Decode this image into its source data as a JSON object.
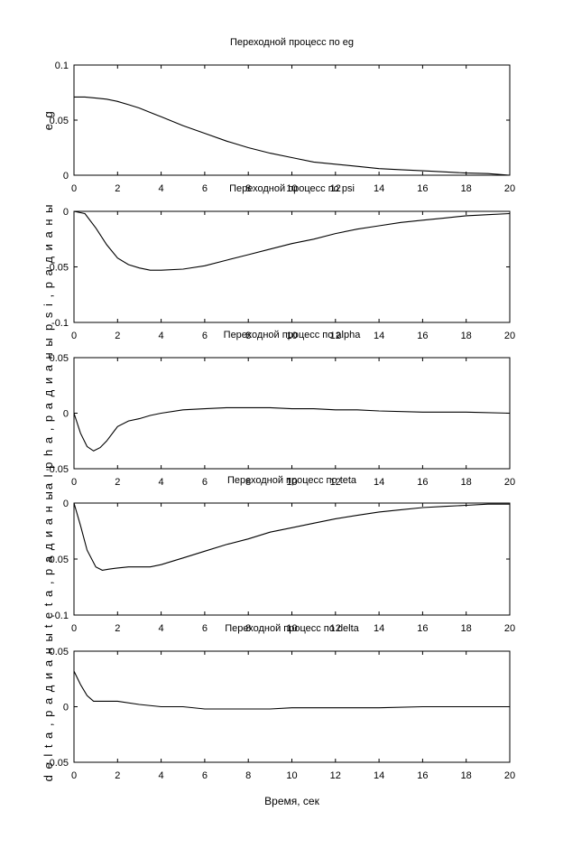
{
  "chart_data": [
    {
      "type": "line",
      "title": "Переходной процесс по eg",
      "ylabel": "e g",
      "xlabel": "",
      "xlim": [
        0,
        20
      ],
      "ylim": [
        0,
        0.1
      ],
      "xticks": [
        "0",
        "2",
        "4",
        "6",
        "8",
        "10",
        "12",
        "14",
        "16",
        "18",
        "20"
      ],
      "yticks": [
        "0",
        "0.05",
        "0.1"
      ],
      "series": [
        {
          "x": [
            0,
            0.5,
            1,
            1.5,
            2,
            2.5,
            3,
            3.5,
            4,
            5,
            6,
            7,
            8,
            9,
            10,
            11,
            12,
            13,
            14,
            15,
            16,
            17,
            18,
            19,
            20
          ],
          "values": [
            0.071,
            0.071,
            0.07,
            0.069,
            0.067,
            0.064,
            0.061,
            0.057,
            0.053,
            0.045,
            0.038,
            0.031,
            0.025,
            0.02,
            0.016,
            0.012,
            0.01,
            0.008,
            0.006,
            0.005,
            0.004,
            0.003,
            0.002,
            0.0015,
            0
          ]
        }
      ]
    },
    {
      "type": "line",
      "title": "Переходной процесс по psi",
      "ylabel": "p s i , р а д и а н ы",
      "xlabel": "",
      "xlim": [
        0,
        20
      ],
      "ylim": [
        -0.1,
        0
      ],
      "xticks": [
        "0",
        "2",
        "4",
        "6",
        "8",
        "10",
        "12",
        "14",
        "16",
        "18",
        "20"
      ],
      "yticks": [
        "-0.1",
        "-0.05",
        "0"
      ],
      "series": [
        {
          "x": [
            0,
            0.5,
            1,
            1.5,
            2,
            2.5,
            3,
            3.5,
            4,
            5,
            6,
            7,
            8,
            9,
            10,
            11,
            12,
            13,
            14,
            15,
            16,
            17,
            18,
            19,
            20
          ],
          "values": [
            0,
            -0.002,
            -0.015,
            -0.03,
            -0.042,
            -0.048,
            -0.051,
            -0.053,
            -0.053,
            -0.052,
            -0.049,
            -0.044,
            -0.039,
            -0.034,
            -0.029,
            -0.025,
            -0.02,
            -0.016,
            -0.013,
            -0.01,
            -0.008,
            -0.006,
            -0.004,
            -0.003,
            -0.002
          ]
        }
      ]
    },
    {
      "type": "line",
      "title": "Переходной процесс по alpha",
      "ylabel": "a l p h a , р а д и а н ы",
      "xlabel": "",
      "xlim": [
        0,
        20
      ],
      "ylim": [
        -0.05,
        0.05
      ],
      "xticks": [
        "0",
        "2",
        "4",
        "6",
        "8",
        "10",
        "12",
        "14",
        "16",
        "18",
        "20"
      ],
      "yticks": [
        "-0.05",
        "0",
        "0.05"
      ],
      "series": [
        {
          "x": [
            0,
            0.3,
            0.6,
            0.9,
            1.2,
            1.5,
            2,
            2.5,
            3,
            3.5,
            4,
            5,
            6,
            7,
            8,
            9,
            10,
            11,
            12,
            13,
            14,
            16,
            18,
            20
          ],
          "values": [
            0,
            -0.018,
            -0.03,
            -0.034,
            -0.031,
            -0.025,
            -0.012,
            -0.007,
            -0.005,
            -0.002,
            0,
            0.003,
            0.004,
            0.005,
            0.005,
            0.005,
            0.004,
            0.004,
            0.003,
            0.003,
            0.002,
            0.001,
            0.001,
            0
          ]
        }
      ]
    },
    {
      "type": "line",
      "title": "Переходной процесс по teta",
      "ylabel": "t e t a , р а д и а н ы",
      "xlabel": "",
      "xlim": [
        0,
        20
      ],
      "ylim": [
        -0.1,
        0
      ],
      "xticks": [
        "0",
        "2",
        "4",
        "6",
        "8",
        "10",
        "12",
        "14",
        "16",
        "18",
        "20"
      ],
      "yticks": [
        "-0.1",
        "-0.05",
        "0"
      ],
      "series": [
        {
          "x": [
            0,
            0.3,
            0.6,
            1,
            1.3,
            1.6,
            2,
            2.5,
            3,
            3.5,
            4,
            5,
            6,
            7,
            8,
            9,
            10,
            11,
            12,
            13,
            14,
            15,
            16,
            17,
            18,
            19,
            20
          ],
          "values": [
            0,
            -0.02,
            -0.042,
            -0.057,
            -0.06,
            -0.059,
            -0.058,
            -0.057,
            -0.057,
            -0.057,
            -0.055,
            -0.049,
            -0.043,
            -0.037,
            -0.032,
            -0.026,
            -0.022,
            -0.018,
            -0.014,
            -0.011,
            -0.008,
            -0.006,
            -0.004,
            -0.003,
            -0.002,
            -0.001,
            -0.001
          ]
        }
      ]
    },
    {
      "type": "line",
      "title": "Переходной процесс по delta",
      "ylabel": "d e l t a , р а д и а н ы",
      "xlabel": "Время, сек",
      "xlim": [
        0,
        20
      ],
      "ylim": [
        -0.05,
        0.05
      ],
      "xticks": [
        "0",
        "2",
        "4",
        "6",
        "8",
        "10",
        "12",
        "14",
        "16",
        "18",
        "20"
      ],
      "yticks": [
        "-0.05",
        "0",
        "0.05"
      ],
      "series": [
        {
          "x": [
            0,
            0.3,
            0.6,
            0.9,
            1.2,
            1.5,
            2,
            3,
            4,
            5,
            6,
            7,
            8,
            9,
            10,
            12,
            14,
            16,
            18,
            20
          ],
          "values": [
            0.032,
            0.02,
            0.01,
            0.005,
            0.005,
            0.005,
            0.005,
            0.002,
            0,
            0,
            -0.002,
            -0.002,
            -0.002,
            -0.002,
            -0.001,
            -0.001,
            -0.001,
            0,
            0,
            0
          ]
        }
      ]
    }
  ]
}
